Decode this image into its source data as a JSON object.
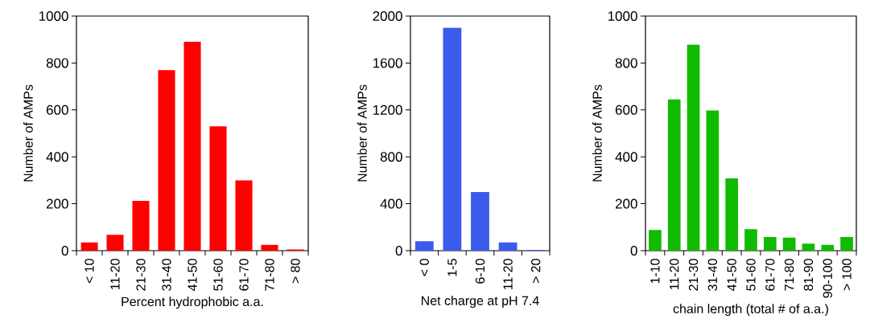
{
  "chart_data": [
    {
      "type": "bar",
      "categories": [
        "< 10",
        "11-20",
        "21-30",
        "31-40",
        "41-50",
        "51-60",
        "61-70",
        "71-80",
        "> 80"
      ],
      "values": [
        35,
        68,
        212,
        770,
        890,
        530,
        300,
        25,
        5
      ],
      "color": "#ff0000",
      "xlabel": "Percent hydrophobic a.a.",
      "ylabel": "Number of AMPs",
      "ylim": [
        0,
        1000
      ],
      "yticks": [
        0,
        200,
        400,
        600,
        800,
        1000
      ]
    },
    {
      "type": "bar",
      "categories": [
        "< 0",
        "1-5",
        "6-10",
        "11-20",
        "> 20"
      ],
      "values": [
        80,
        1900,
        500,
        70,
        5
      ],
      "color": "#3b5bec",
      "xlabel": "Net charge at pH 7.4",
      "ylabel": "Number of AMPs",
      "ylim": [
        0,
        2000
      ],
      "yticks": [
        0,
        400,
        800,
        1200,
        1600,
        2000
      ]
    },
    {
      "type": "bar",
      "categories": [
        "1-10",
        "11-20",
        "21-30",
        "31-40",
        "41-50",
        "51-60",
        "61-70",
        "71-80",
        "81-90",
        "90-100",
        "> 100"
      ],
      "values": [
        88,
        645,
        878,
        598,
        308,
        92,
        58,
        56,
        30,
        25,
        58
      ],
      "color": "#11bb00",
      "xlabel": "chain length (total # of a.a.)",
      "ylabel": "Number of AMPs",
      "ylim": [
        0,
        1000
      ],
      "yticks": [
        0,
        200,
        400,
        600,
        800,
        1000
      ]
    }
  ]
}
